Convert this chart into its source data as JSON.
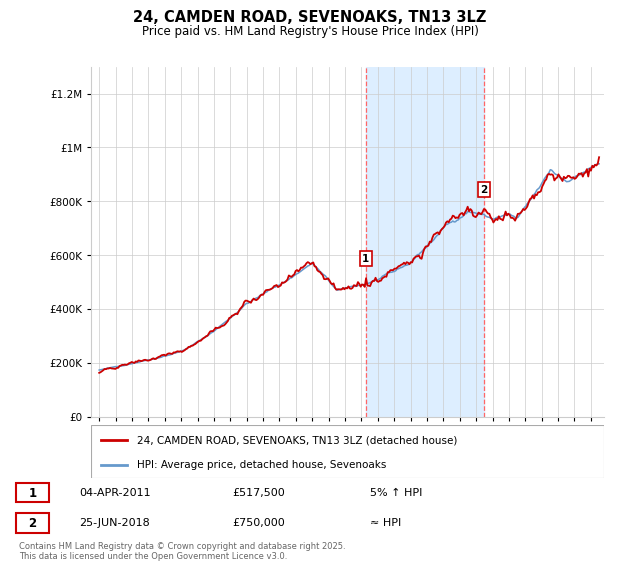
{
  "title": "24, CAMDEN ROAD, SEVENOAKS, TN13 3LZ",
  "subtitle": "Price paid vs. HM Land Registry's House Price Index (HPI)",
  "legend_line1": "24, CAMDEN ROAD, SEVENOAKS, TN13 3LZ (detached house)",
  "legend_line2": "HPI: Average price, detached house, Sevenoaks",
  "sale1_date": "04-APR-2011",
  "sale1_price": "£517,500",
  "sale1_note": "5% ↑ HPI",
  "sale1_year": 2011.27,
  "sale1_value": 517500,
  "sale2_date": "25-JUN-2018",
  "sale2_price": "£750,000",
  "sale2_note": "≈ HPI",
  "sale2_year": 2018.49,
  "sale2_value": 750000,
  "ylim_min": 0,
  "ylim_max": 1300000,
  "footnote": "Contains HM Land Registry data © Crown copyright and database right 2025.\nThis data is licensed under the Open Government Licence v3.0.",
  "background_color": "#ffffff",
  "plot_bg_color": "#ffffff",
  "hpi_color": "#6699cc",
  "price_color": "#cc0000",
  "sale_vline_color": "#ff6666",
  "shaded_region_color": "#ddeeff",
  "grid_color": "#cccccc"
}
